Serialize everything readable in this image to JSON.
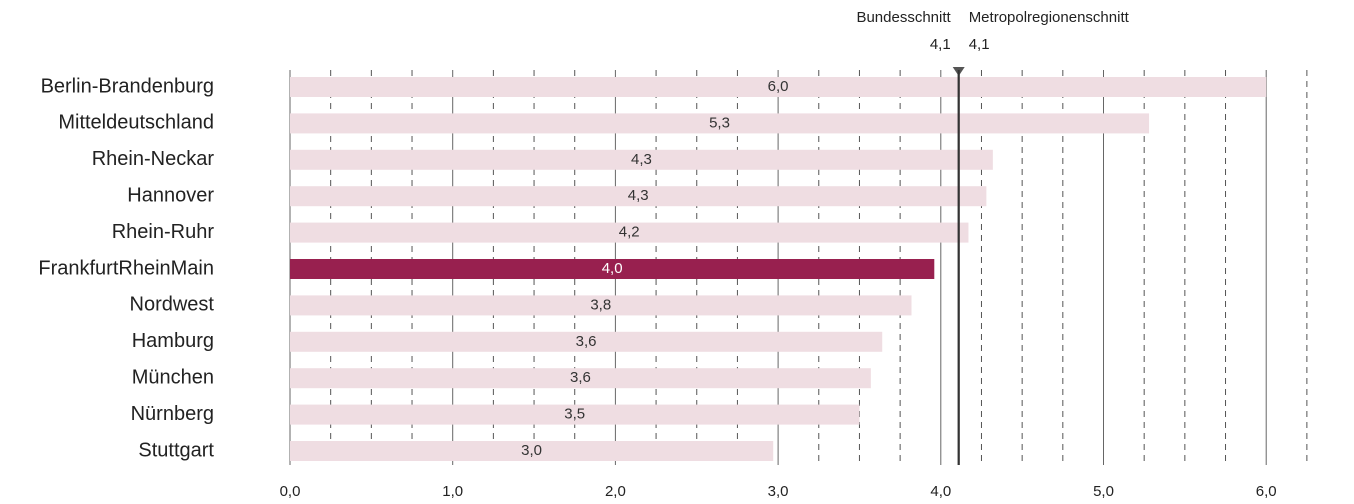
{
  "chart_data": {
    "type": "bar",
    "orientation": "horizontal",
    "categories": [
      "Berlin-Brandenburg",
      "Mitteldeutschland",
      "Rhein-Neckar",
      "Hannover",
      "Rhein-Ruhr",
      "FrankfurtRheinMain",
      "Nordwest",
      "Hamburg",
      "München",
      "Nürnberg",
      "Stuttgart"
    ],
    "values": [
      6.0,
      5.28,
      4.32,
      4.28,
      4.17,
      3.96,
      3.82,
      3.64,
      3.57,
      3.5,
      2.97
    ],
    "value_labels": [
      "6,0",
      "5,3",
      "4,3",
      "4,3",
      "4,2",
      "4,0",
      "3,8",
      "3,6",
      "3,6",
      "3,5",
      "3,0"
    ],
    "colors": [
      "#efdde2",
      "#efdde2",
      "#efdde2",
      "#efdde2",
      "#efdde2",
      "#98204f",
      "#efdde2",
      "#efdde2",
      "#efdde2",
      "#efdde2",
      "#efdde2"
    ],
    "value_label_colors": [
      "#333333",
      "#333333",
      "#333333",
      "#333333",
      "#333333",
      "#ffffff",
      "#333333",
      "#333333",
      "#333333",
      "#333333",
      "#333333"
    ],
    "xlim": [
      0,
      6.5
    ],
    "xticks": [
      {
        "value": 0,
        "label": "0,0"
      },
      {
        "value": 1,
        "label": "1,0"
      },
      {
        "value": 2,
        "label": "2,0"
      },
      {
        "value": 3,
        "label": "3,0"
      },
      {
        "value": 4,
        "label": "4,0"
      },
      {
        "value": 5,
        "label": "5,0"
      },
      {
        "value": 6,
        "label": "6,0"
      }
    ],
    "xticks_minor": [
      0.25,
      0.5,
      0.75,
      1.25,
      1.5,
      1.75,
      2.25,
      2.5,
      2.75,
      3.25,
      3.5,
      3.75,
      4.25,
      4.5,
      4.75,
      5.25,
      5.5,
      5.75,
      6.25
    ],
    "grid": true,
    "references": [
      {
        "name": "Bundesschnitt",
        "value": 4.11,
        "label": "4,1"
      },
      {
        "name": "Metropolregionenschnitt",
        "value": 4.11,
        "label": "4,1"
      }
    ]
  }
}
